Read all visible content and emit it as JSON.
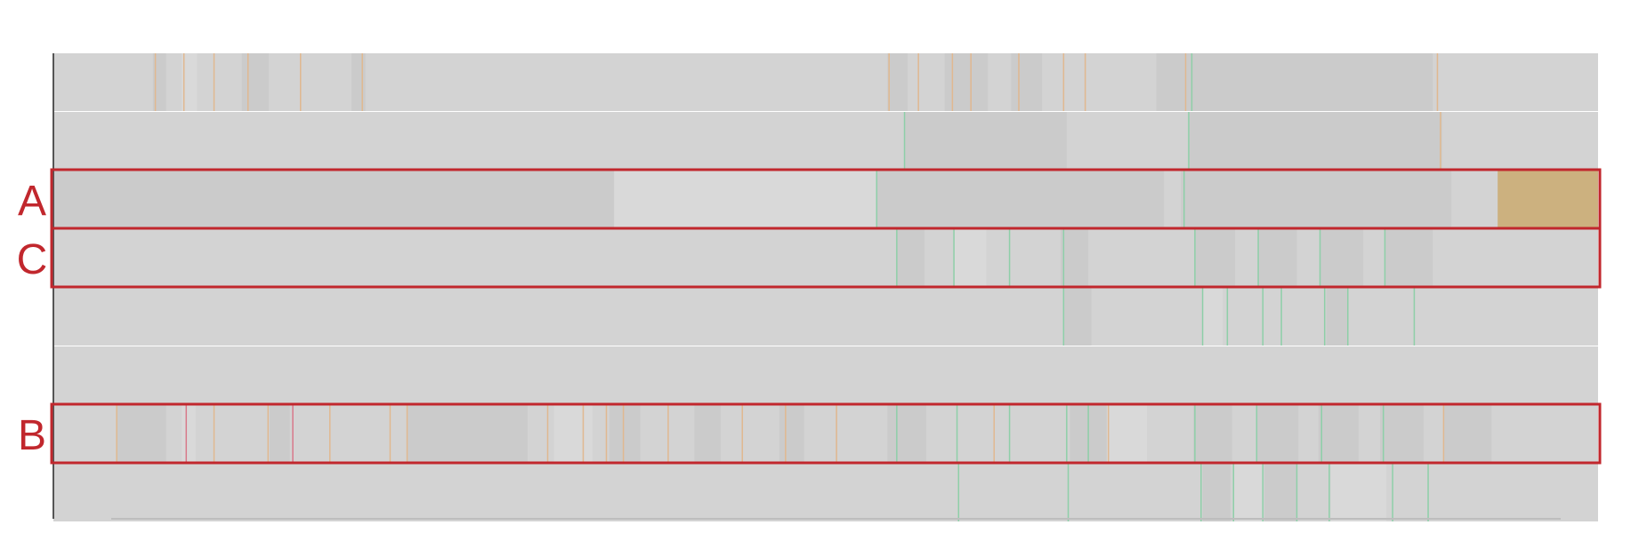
{
  "chart_data": {
    "type": "timeline",
    "title": "",
    "xlabel": "",
    "ylabel": "",
    "colors": {
      "track": "#d3d3d3",
      "segment_dark": "#cbcbcb",
      "segment_light": "#d9d9d9",
      "highlight_frame": "#c1272d",
      "highlight_block": "#ccb17f",
      "tick_orange": "#e0b890",
      "tick_green": "#8ecfa8",
      "tick_red": "#d8798a"
    },
    "tracks": [
      {
        "label": "",
        "highlighted": false,
        "segments": [
          [
            0.0645,
            0.073,
            "dark"
          ],
          [
            0.083,
            0.093,
            "light"
          ],
          [
            0.122,
            0.1395,
            "dark"
          ],
          [
            0.193,
            0.202,
            "dark"
          ],
          [
            0.54,
            0.553,
            "dark"
          ],
          [
            0.577,
            0.605,
            "dark"
          ],
          [
            0.62,
            0.64,
            "dark"
          ],
          [
            0.714,
            0.893,
            "dark"
          ]
        ],
        "ticks": [
          [
            0.066,
            "orange"
          ],
          [
            0.0845,
            "orange"
          ],
          [
            0.104,
            "orange"
          ],
          [
            0.126,
            "orange"
          ],
          [
            0.16,
            "orange"
          ],
          [
            0.2,
            "orange"
          ],
          [
            0.541,
            "orange"
          ],
          [
            0.56,
            "orange"
          ],
          [
            0.582,
            "orange"
          ],
          [
            0.594,
            "orange"
          ],
          [
            0.625,
            "orange"
          ],
          [
            0.654,
            "orange"
          ],
          [
            0.668,
            "orange"
          ],
          [
            0.733,
            "orange"
          ],
          [
            0.737,
            "green"
          ],
          [
            0.896,
            "orange"
          ]
        ]
      },
      {
        "label": "",
        "highlighted": false,
        "segments": [
          [
            0.551,
            0.656,
            "dark"
          ],
          [
            0.735,
            0.899,
            "dark"
          ]
        ],
        "ticks": [
          [
            0.551,
            "green"
          ],
          [
            0.735,
            "green"
          ],
          [
            0.898,
            "orange"
          ]
        ]
      },
      {
        "label": "A",
        "highlighted": true,
        "segments": [
          [
            0.0,
            0.363,
            "dark"
          ],
          [
            0.363,
            0.533,
            "light"
          ],
          [
            0.533,
            0.719,
            "dark"
          ],
          [
            0.73,
            0.905,
            "dark"
          ],
          [
            0.935,
            1.0,
            "block"
          ]
        ],
        "ticks": [
          [
            0.533,
            "green"
          ],
          [
            0.732,
            "green"
          ]
        ]
      },
      {
        "label": "C",
        "highlighted": true,
        "segments": [
          [
            0.546,
            0.564,
            "dark"
          ],
          [
            0.583,
            0.604,
            "light"
          ],
          [
            0.652,
            0.67,
            "dark"
          ],
          [
            0.739,
            0.765,
            "dark"
          ],
          [
            0.78,
            0.805,
            "dark"
          ],
          [
            0.82,
            0.848,
            "dark"
          ],
          [
            0.862,
            0.893,
            "dark"
          ]
        ],
        "ticks": [
          [
            0.546,
            "green"
          ],
          [
            0.583,
            "green"
          ],
          [
            0.619,
            "green"
          ],
          [
            0.654,
            "green"
          ],
          [
            0.739,
            "green"
          ],
          [
            0.78,
            "green"
          ],
          [
            0.82,
            "green"
          ],
          [
            0.862,
            "green"
          ]
        ]
      },
      {
        "label": "",
        "highlighted": false,
        "segments": [
          [
            0.654,
            0.672,
            "dark"
          ],
          [
            0.744,
            0.757,
            "light"
          ],
          [
            0.824,
            0.838,
            "dark"
          ]
        ],
        "ticks": [
          [
            0.654,
            "green"
          ],
          [
            0.744,
            "green"
          ],
          [
            0.76,
            "green"
          ],
          [
            0.783,
            "green"
          ],
          [
            0.795,
            "green"
          ],
          [
            0.823,
            "green"
          ],
          [
            0.838,
            "green"
          ],
          [
            0.881,
            "green"
          ]
        ]
      },
      {
        "label": "",
        "highlighted": false,
        "segments": [],
        "ticks": []
      },
      {
        "label": "B",
        "highlighted": true,
        "segments": [
          [
            0.041,
            0.073,
            "dark"
          ],
          [
            0.083,
            0.092,
            "light"
          ],
          [
            0.14,
            0.153,
            "dark"
          ],
          [
            0.229,
            0.307,
            "dark"
          ],
          [
            0.324,
            0.349,
            "light"
          ],
          [
            0.36,
            0.38,
            "dark"
          ],
          [
            0.415,
            0.432,
            "dark"
          ],
          [
            0.47,
            0.486,
            "dark"
          ],
          [
            0.54,
            0.565,
            "dark"
          ],
          [
            0.658,
            0.683,
            "dark"
          ],
          [
            0.682,
            0.708,
            "light"
          ],
          [
            0.738,
            0.763,
            "dark"
          ],
          [
            0.779,
            0.806,
            "dark"
          ],
          [
            0.819,
            0.845,
            "dark"
          ],
          [
            0.859,
            0.887,
            "dark"
          ],
          [
            0.9,
            0.931,
            "dark"
          ]
        ],
        "ticks": [
          [
            0.041,
            "orange"
          ],
          [
            0.086,
            "red"
          ],
          [
            0.104,
            "orange"
          ],
          [
            0.139,
            "orange"
          ],
          [
            0.155,
            "red"
          ],
          [
            0.179,
            "orange"
          ],
          [
            0.218,
            "orange"
          ],
          [
            0.229,
            "orange"
          ],
          [
            0.32,
            "orange"
          ],
          [
            0.343,
            "orange"
          ],
          [
            0.358,
            "orange"
          ],
          [
            0.369,
            "orange"
          ],
          [
            0.398,
            "orange"
          ],
          [
            0.446,
            "orange"
          ],
          [
            0.474,
            "orange"
          ],
          [
            0.507,
            "orange"
          ],
          [
            0.546,
            "green"
          ],
          [
            0.585,
            "green"
          ],
          [
            0.609,
            "orange"
          ],
          [
            0.619,
            "green"
          ],
          [
            0.656,
            "green"
          ],
          [
            0.67,
            "green"
          ],
          [
            0.683,
            "orange"
          ],
          [
            0.739,
            "green"
          ],
          [
            0.779,
            "green"
          ],
          [
            0.821,
            "green"
          ],
          [
            0.861,
            "green"
          ],
          [
            0.9,
            "orange"
          ]
        ]
      },
      {
        "label": "",
        "highlighted": false,
        "segments": [
          [
            0.744,
            0.762,
            "dark"
          ],
          [
            0.764,
            0.783,
            "light"
          ],
          [
            0.784,
            0.805,
            "dark"
          ],
          [
            0.827,
            0.863,
            "light"
          ]
        ],
        "ticks": [
          [
            0.586,
            "green"
          ],
          [
            0.657,
            "green"
          ],
          [
            0.743,
            "green"
          ],
          [
            0.764,
            "green"
          ],
          [
            0.783,
            "green"
          ],
          [
            0.805,
            "green"
          ],
          [
            0.826,
            "green"
          ],
          [
            0.867,
            "green"
          ],
          [
            0.89,
            "green"
          ]
        ]
      }
    ]
  }
}
